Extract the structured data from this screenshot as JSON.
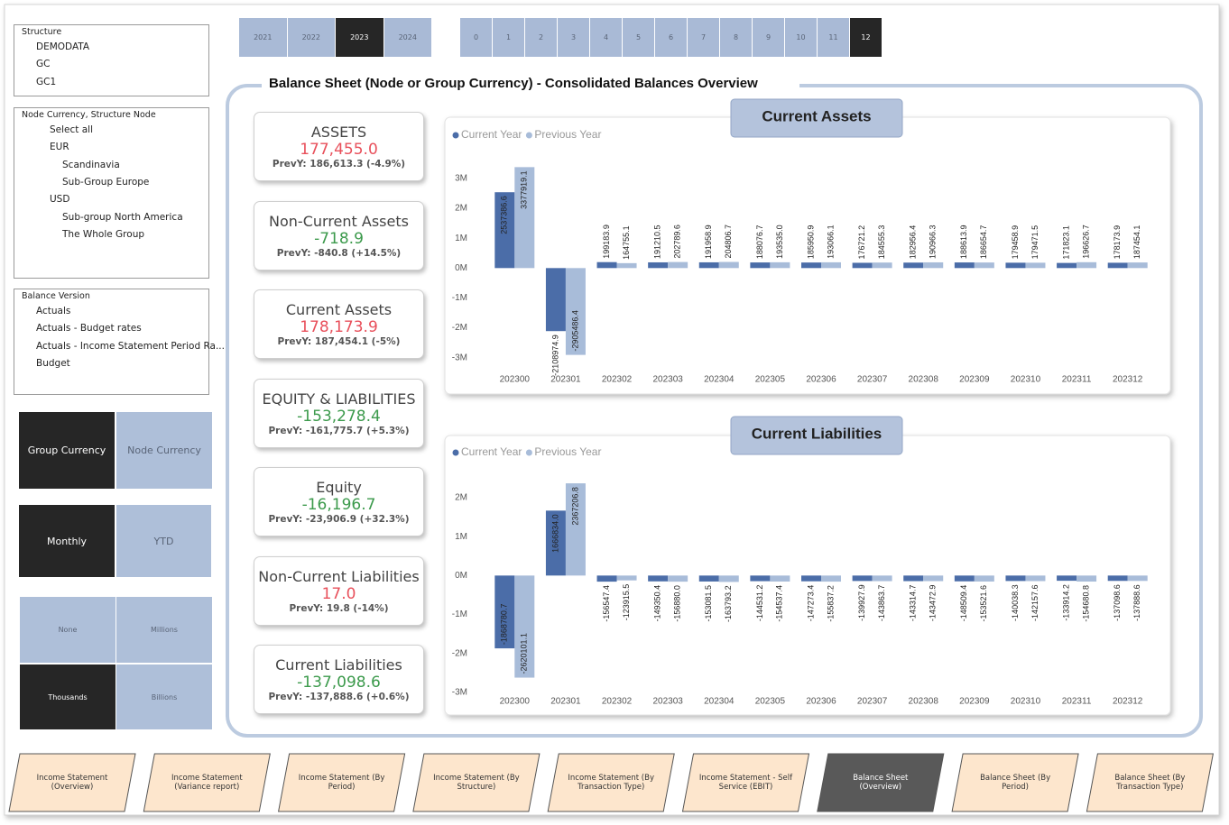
{
  "year_buttons": {
    "items": [
      "2021",
      "2022",
      "2023",
      "2024"
    ],
    "selected": 2
  },
  "period_buttons": {
    "items": [
      "0",
      "1",
      "2",
      "3",
      "4",
      "5",
      "6",
      "7",
      "8",
      "9",
      "10",
      "11",
      "12"
    ],
    "selected": 12
  },
  "slicers": [
    {
      "title": "Structure",
      "mode": "radio",
      "options": [
        "DEMODATA",
        "GC",
        "GC1"
      ],
      "selected": [
        1
      ]
    },
    {
      "title": "Node Currency, Structure Node",
      "mode": "checkbox",
      "options": [
        "Select all",
        {
          "label": "EUR",
          "children": [
            "Scandinavia",
            "Sub-Group Europe"
          ]
        },
        {
          "label": "USD",
          "children": [
            "Sub-group North America",
            "The Whole Group"
          ]
        }
      ],
      "selected": []
    },
    {
      "title": "Balance Version",
      "mode": "radio",
      "options": [
        "Actuals",
        "Actuals - Budget rates",
        "Actuals - Income Statement Period Ra...",
        "Budget"
      ],
      "selected": [
        0
      ]
    }
  ],
  "toggles": [
    {
      "items": [
        "Group Currency",
        "Node Currency"
      ],
      "selected": 0
    },
    {
      "items": [
        "Monthly",
        "YTD"
      ],
      "selected": 0
    },
    {
      "items": [
        "None",
        "Millions",
        "Thousands",
        "Billions"
      ],
      "selected": 2
    }
  ],
  "header": {
    "title": "Balance Sheet (Node or Group Currency) - Consolidated Balances Overview"
  },
  "kpis": [
    {
      "title": "ASSETS",
      "value": "177,455.0",
      "value_color": "#e8505b",
      "prev": "PrevY: 186,613.3 (-4.9%)"
    },
    {
      "title": "Non-Current Assets",
      "value": "-718.9",
      "value_color": "#3c9a4c",
      "prev": "PrevY: -840.8 (+14.5%)"
    },
    {
      "title": "Current Assets",
      "value": "178,173.9",
      "value_color": "#e8505b",
      "prev": "PrevY: 187,454.1 (-5%)"
    },
    {
      "title": "EQUITY & LIABILITIES",
      "value": "-153,278.4",
      "value_color": "#3c9a4c",
      "prev": "PrevY: -161,775.7 (+5.3%)"
    },
    {
      "title": "Equity",
      "value": "-16,196.7",
      "value_color": "#3c9a4c",
      "prev": "PrevY: -23,906.9 (+32.3%)"
    },
    {
      "title": "Non-Current Liabilities",
      "value": "17.0",
      "value_color": "#e8505b",
      "prev": "PrevY: 19.8 (-14%)"
    },
    {
      "title": "Current Liabilities",
      "value": "-137,098.6",
      "value_color": "#3c9a4c",
      "prev": "PrevY: -137,888.6 (+0.6%)"
    }
  ],
  "chart_data": [
    {
      "type": "bar",
      "title": "Current Assets",
      "categories": [
        "202300",
        "202301",
        "202302",
        "202303",
        "202304",
        "202305",
        "202306",
        "202307",
        "202308",
        "202309",
        "202310",
        "202311",
        "202312"
      ],
      "series": [
        {
          "name": "Current Year",
          "color": "#4b6da8",
          "values": [
            2537386.6,
            -2108974.9,
            199183.9,
            191210.5,
            191958.9,
            188076.7,
            185950.9,
            176721.2,
            182956.4,
            188613.9,
            179458.9,
            171823.1,
            178173.9
          ],
          "value_labels": [
            "2537386.6",
            "-2108974.9",
            "199183.9",
            "191210.5",
            "191958.9",
            "188076.7",
            "185950.9",
            "176721.2",
            "182956.4",
            "188613.9",
            "179458.9",
            "171823.1",
            "178173.9"
          ]
        },
        {
          "name": "Previous Year",
          "color": "#a8bcd9",
          "values": [
            3377919.1,
            -2905486.4,
            164755.1,
            202789.6,
            204806.7,
            193535.0,
            193066.1,
            184555.3,
            190966.3,
            186654.7,
            179471.5,
            196626.7,
            187454.1
          ],
          "value_labels": [
            "3377919.1",
            "-2905486.4",
            "164755.1",
            "202789.6",
            "204806.7",
            "193535.0",
            "193066.1",
            "184555.3",
            "190966.3",
            "186654.7",
            "179471.5",
            "196626.7",
            "187454.1"
          ]
        }
      ],
      "ylim": [
        -3400000,
        3600000
      ],
      "yticks": [
        {
          "value": 3000000,
          "label": "3M"
        },
        {
          "value": 2000000,
          "label": "2M"
        },
        {
          "value": 1000000,
          "label": "1M"
        },
        {
          "value": 0,
          "label": "0M"
        },
        {
          "value": -1000000,
          "label": "-1M"
        },
        {
          "value": -2000000,
          "label": "-2M"
        },
        {
          "value": -3000000,
          "label": "-3M"
        }
      ],
      "grid": false
    },
    {
      "type": "bar",
      "title": "Current Liabilities",
      "categories": [
        "202300",
        "202301",
        "202302",
        "202303",
        "202304",
        "202305",
        "202306",
        "202307",
        "202308",
        "202309",
        "202310",
        "202311",
        "202312"
      ],
      "series": [
        {
          "name": "Current Year",
          "color": "#4b6da8",
          "values": [
            -1868780.7,
            1666834.0,
            -156547.4,
            -149350.4,
            -153081.5,
            -144531.2,
            -147273.4,
            -139927.9,
            -143314.7,
            -148509.4,
            -140038.3,
            -133914.2,
            -137098.6
          ],
          "value_labels": [
            "-1868780.7",
            "1666834.0",
            "-156547.4",
            "-149350.4",
            "-153081.5",
            "-144531.2",
            "-147273.4",
            "-139927.9",
            "-143314.7",
            "-148509.4",
            "-140038.3",
            "-133914.2",
            "-137098.6"
          ]
        },
        {
          "name": "Previous Year",
          "color": "#a8bcd9",
          "values": [
            -2620101.1,
            2367206.8,
            -123915.5,
            -156880.0,
            -163793.2,
            -154537.4,
            -155837.2,
            -143863.7,
            -143472.9,
            -153521.6,
            -142157.6,
            -154680.8,
            -137888.6
          ],
          "value_labels": [
            "-2620101.1",
            "2367206.8",
            "-123915.5",
            "-156880.0",
            "-163793.2",
            "-154537.4",
            "-155837.2",
            "-143863.7",
            "-143472.9",
            "-153521.6",
            "-142157.6",
            "-154680.8",
            "-137888.6"
          ]
        }
      ],
      "ylim": [
        -3200000,
        2600000
      ],
      "yticks": [
        {
          "value": 2000000,
          "label": "2M"
        },
        {
          "value": 1000000,
          "label": "1M"
        },
        {
          "value": 0,
          "label": "0M"
        },
        {
          "value": -1000000,
          "label": "-1M"
        },
        {
          "value": -2000000,
          "label": "-2M"
        },
        {
          "value": -3000000,
          "label": "-3M"
        }
      ],
      "grid": false
    }
  ],
  "nav": {
    "items": [
      "Income Statement (Overview)",
      "Income Statement (Variance report)",
      "Income Statement (By Period)",
      "Income Statement (By Structure)",
      "Income Statement (By Transaction Type)",
      "Income Statement - Self Service (EBIT)",
      "Balance Sheet (Overview)",
      "Balance Sheet (By Period)",
      "Balance Sheet (By Transaction Type)"
    ],
    "selected": 6
  }
}
